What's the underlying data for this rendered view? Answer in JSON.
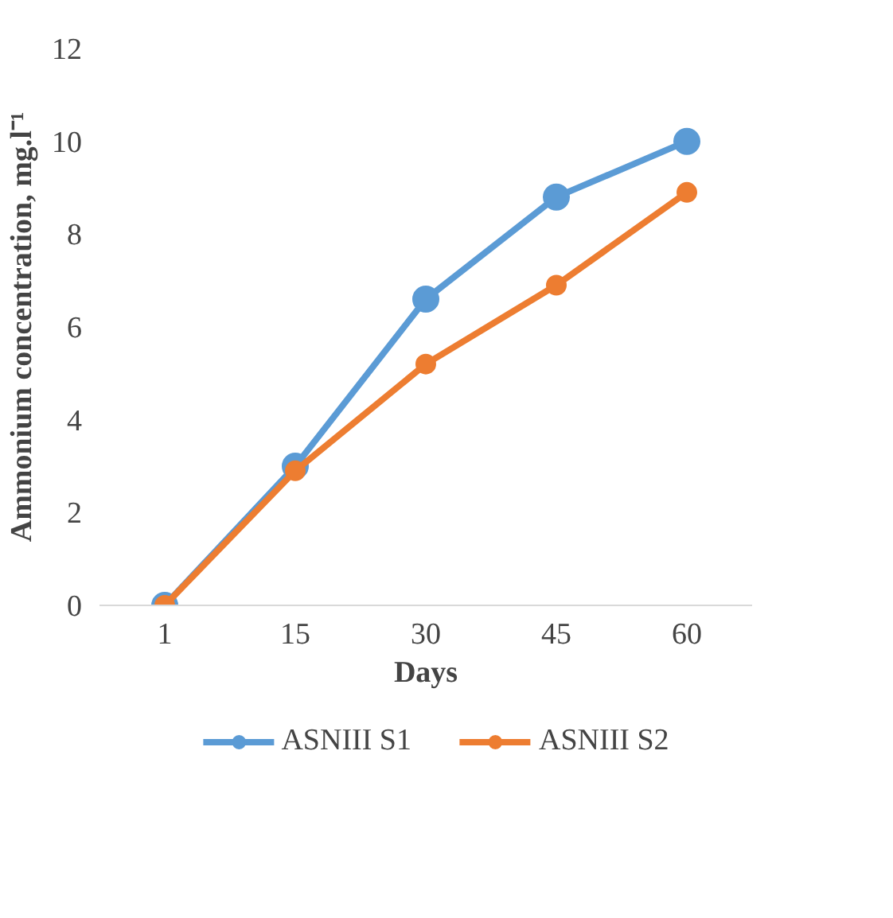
{
  "chart_data": {
    "type": "line",
    "xlabel": "Days",
    "ylabel": "Ammonium concentration, mg.l⁻¹",
    "categories": [
      "1",
      "15",
      "30",
      "45",
      "60"
    ],
    "series": [
      {
        "name": "ASNIII S1",
        "color": "#5b9bd5",
        "values": [
          0,
          3.0,
          6.6,
          8.8,
          10.0
        ]
      },
      {
        "name": "ASNIII S2",
        "color": "#ed7d31",
        "values": [
          0,
          2.9,
          5.2,
          6.9,
          8.9
        ]
      }
    ],
    "ylim": [
      0,
      12
    ],
    "yticks": [
      0,
      2,
      4,
      6,
      8,
      10,
      12
    ],
    "grid": false,
    "legend": "bottom",
    "marker": "circle",
    "line_style": "solid"
  }
}
